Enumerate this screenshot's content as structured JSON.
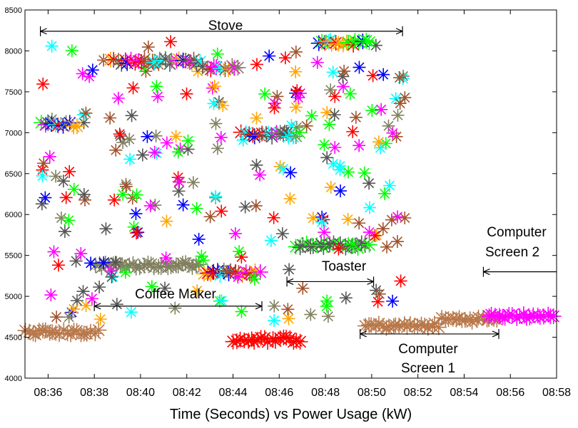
{
  "chart_data": {
    "type": "scatter",
    "xlabel": "Time (Seconds) vs Power Usage (kW)",
    "ylabel": "",
    "xlim": [
      "08:35",
      "08:58"
    ],
    "ylim": [
      4000,
      8500
    ],
    "x_ticks": [
      "08:36",
      "08:38",
      "08:40",
      "08:42",
      "08:44",
      "08:46",
      "08:48",
      "08:50",
      "08:52",
      "08:54",
      "08:56",
      "08:58"
    ],
    "y_ticks": [
      4000,
      4500,
      5000,
      5500,
      6000,
      6500,
      7000,
      7500,
      8000,
      8500
    ],
    "marker": "asterisk",
    "grid": false,
    "palette": [
      "#00ff00",
      "#0000ff",
      "#ff0000",
      "#ff00ff",
      "#00ffff",
      "#ffa500",
      "#a0522d",
      "#808060",
      "#555555",
      "#b8784a"
    ],
    "annotations": [
      {
        "label": "Stove",
        "x_start": "08:35:40",
        "x_end": "08:51:20",
        "y": 8240
      },
      {
        "label": "Coffee Maker",
        "x_start": "08:38:00",
        "x_end": "08:45:15",
        "y": 4880
      },
      {
        "label": "Toaster",
        "x_start": "08:46:20",
        "x_end": "08:50:05",
        "y": 5180
      },
      {
        "label": "Computer Screen 1",
        "x_start": "08:49:30",
        "x_end": "08:55:30",
        "y": 4540
      },
      {
        "label": "Computer Screen 2",
        "x_start": "08:54:50",
        "x_end": "08:58:00",
        "y": 5300
      }
    ],
    "clusters": [
      {
        "name": "Stove",
        "x_range": [
          "08:35:40",
          "08:51:30"
        ],
        "y_range": [
          5900,
          8150
        ],
        "dense_bands": [
          {
            "x": [
              "08:35:40",
              "08:37:20"
            ],
            "y": 7100
          },
          {
            "x": [
              "08:38:40",
              "08:42:40"
            ],
            "y": 7870
          },
          {
            "x": [
              "08:42:40",
              "08:44:20"
            ],
            "y": 7800
          },
          {
            "x": [
              "08:44:20",
              "08:47:00"
            ],
            "y": 6980
          },
          {
            "x": [
              "08:47:40",
              "08:50:00"
            ],
            "y": 8100
          }
        ]
      },
      {
        "name": "Coffee Maker",
        "x_range": [
          "08:38:00",
          "08:45:15"
        ],
        "dense_bands": [
          {
            "x": [
              "08:38:00",
              "08:42:40"
            ],
            "y": 5380
          },
          {
            "x": [
              "08:42:40",
              "08:45:15"
            ],
            "y": 5290
          },
          {
            "x": [
              "08:44:00",
              "08:47:00"
            ],
            "y": 4470
          }
        ]
      },
      {
        "name": "Toaster",
        "x_range": [
          "08:46:40",
          "08:50:00"
        ],
        "dense_bands": [
          {
            "x": [
              "08:46:40",
              "08:50:00"
            ],
            "y": 5620
          }
        ]
      },
      {
        "name": "Computer Screen 1",
        "x_range": [
          "08:49:40",
          "08:55:30"
        ],
        "dense_bands": [
          {
            "x": [
              "08:49:40",
              "08:53:00"
            ],
            "y": 4640
          },
          {
            "x": [
              "08:53:00",
              "08:55:30"
            ],
            "y": 4720
          },
          {
            "x": [
              "08:35:00",
              "08:38:15"
            ],
            "y": 4560
          }
        ]
      },
      {
        "name": "Computer Screen 2",
        "x_range": [
          "08:55:00",
          "08:58:00"
        ],
        "dense_bands": [
          {
            "x": [
              "08:55:00",
              "08:58:00"
            ],
            "y": 4760
          }
        ]
      }
    ]
  }
}
